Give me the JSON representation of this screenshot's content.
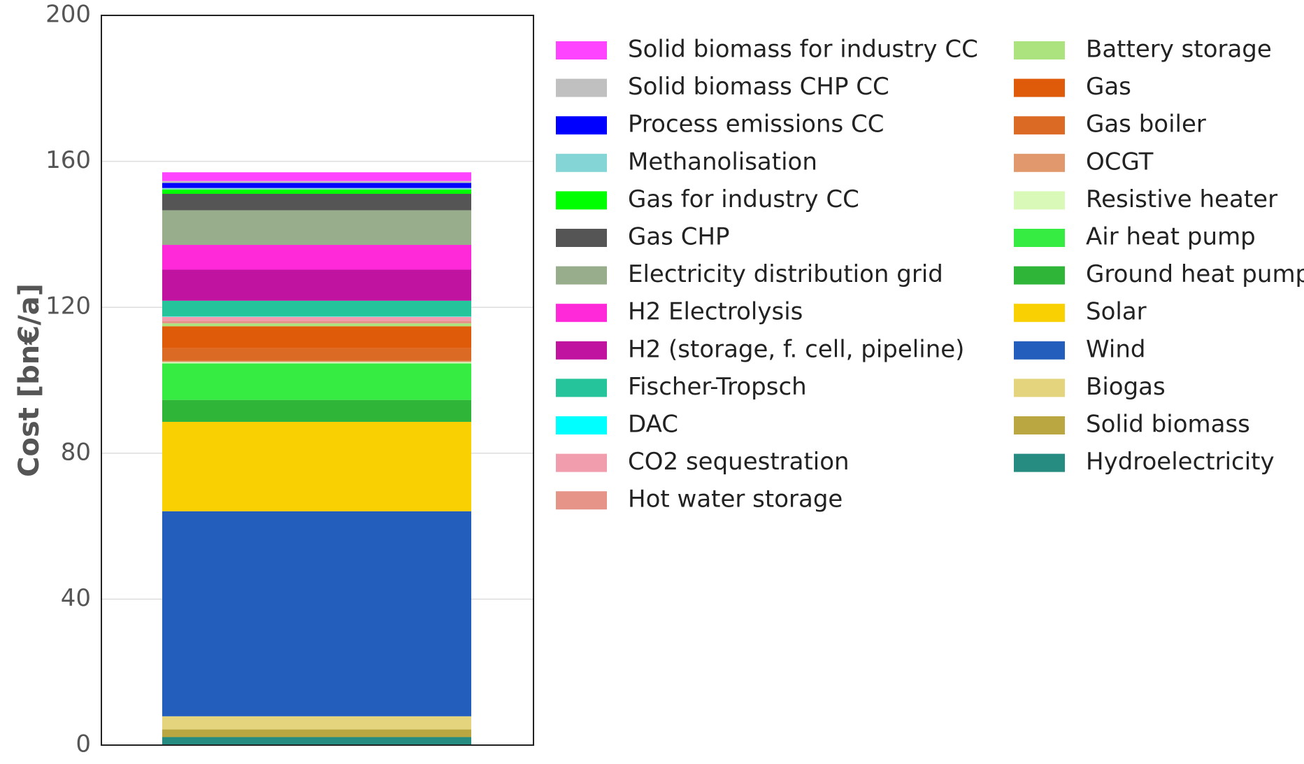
{
  "chart_data": {
    "type": "bar",
    "stacked": true,
    "categories": [
      ""
    ],
    "xlabel": "",
    "ylabel": "Cost [bn€/a]",
    "ylim": [
      0,
      200
    ],
    "yticks": [
      0,
      40,
      80,
      120,
      160,
      200
    ],
    "grid": "horizontal",
    "legend_position": "right",
    "series": [
      {
        "name": "Hydroelectricity",
        "values": [
          2.2
        ],
        "color": "#268b80"
      },
      {
        "name": "Solid biomass",
        "values": [
          2.1
        ],
        "color": "#baa741"
      },
      {
        "name": "Biogas",
        "values": [
          3.6
        ],
        "color": "#e5d47e"
      },
      {
        "name": "Wind",
        "values": [
          56.2
        ],
        "color": "#235ebc"
      },
      {
        "name": "Solar",
        "values": [
          24.5
        ],
        "color": "#f9d002"
      },
      {
        "name": "Ground heat pump",
        "values": [
          6.0
        ],
        "color": "#2fb537"
      },
      {
        "name": "Air heat pump",
        "values": [
          10.0
        ],
        "color": "#36eb41"
      },
      {
        "name": "Resistive heater",
        "values": [
          0.4
        ],
        "color": "#d8f9b8"
      },
      {
        "name": "OCGT",
        "values": [
          0.3
        ],
        "color": "#e0986c"
      },
      {
        "name": "Gas boiler",
        "values": [
          3.5
        ],
        "color": "#db6a25"
      },
      {
        "name": "Gas",
        "values": [
          6.0
        ],
        "color": "#e05b09"
      },
      {
        "name": "Battery storage",
        "values": [
          0.8
        ],
        "color": "#ace37f"
      },
      {
        "name": "Hot water storage",
        "values": [
          0.6
        ],
        "color": "#e69487"
      },
      {
        "name": "CO2 sequestration",
        "values": [
          1.2
        ],
        "color": "#f29dae"
      },
      {
        "name": "DAC",
        "values": [
          0.1
        ],
        "color": "#00ffff"
      },
      {
        "name": "Fischer-Tropsch",
        "values": [
          4.3
        ],
        "color": "#25c49a"
      },
      {
        "name": "H2 (storage, f. cell, pipeline)",
        "values": [
          8.5
        ],
        "color": "#bf13a0"
      },
      {
        "name": "H2 Electrolysis",
        "values": [
          6.8
        ],
        "color": "#ff29d9"
      },
      {
        "name": "Electricity distribution grid",
        "values": [
          9.5
        ],
        "color": "#97ad8c"
      },
      {
        "name": "Gas CHP",
        "values": [
          4.5
        ],
        "color": "#555555"
      },
      {
        "name": "Gas for industry CC",
        "values": [
          1.2
        ],
        "color": "#00ff00"
      },
      {
        "name": "Methanolisation",
        "values": [
          0.4
        ],
        "color": "#83d6d5"
      },
      {
        "name": "Process emissions CC",
        "values": [
          1.4
        ],
        "color": "#0000ff"
      },
      {
        "name": "Solid biomass CHP CC",
        "values": [
          0.5
        ],
        "color": "#c0c0c0"
      },
      {
        "name": "Solid biomass for industry CC",
        "values": [
          2.4
        ],
        "color": "#ff44ff"
      }
    ],
    "legend_columns": [
      [
        "Solid biomass for industry CC",
        "Solid biomass CHP CC",
        "Process emissions CC",
        "Methanolisation",
        "Gas for industry CC",
        "Gas CHP",
        "Electricity distribution grid",
        "H2 Electrolysis",
        "H2 (storage, f. cell, pipeline)",
        "Fischer-Tropsch",
        "DAC",
        "CO2 sequestration",
        "Hot water storage"
      ],
      [
        "Battery storage",
        "Gas",
        "Gas boiler",
        "OCGT",
        "Resistive heater",
        "Air heat pump",
        "Ground heat pump",
        "Solar",
        "Wind",
        "Biogas",
        "Solid biomass",
        "Hydroelectricity"
      ]
    ]
  }
}
